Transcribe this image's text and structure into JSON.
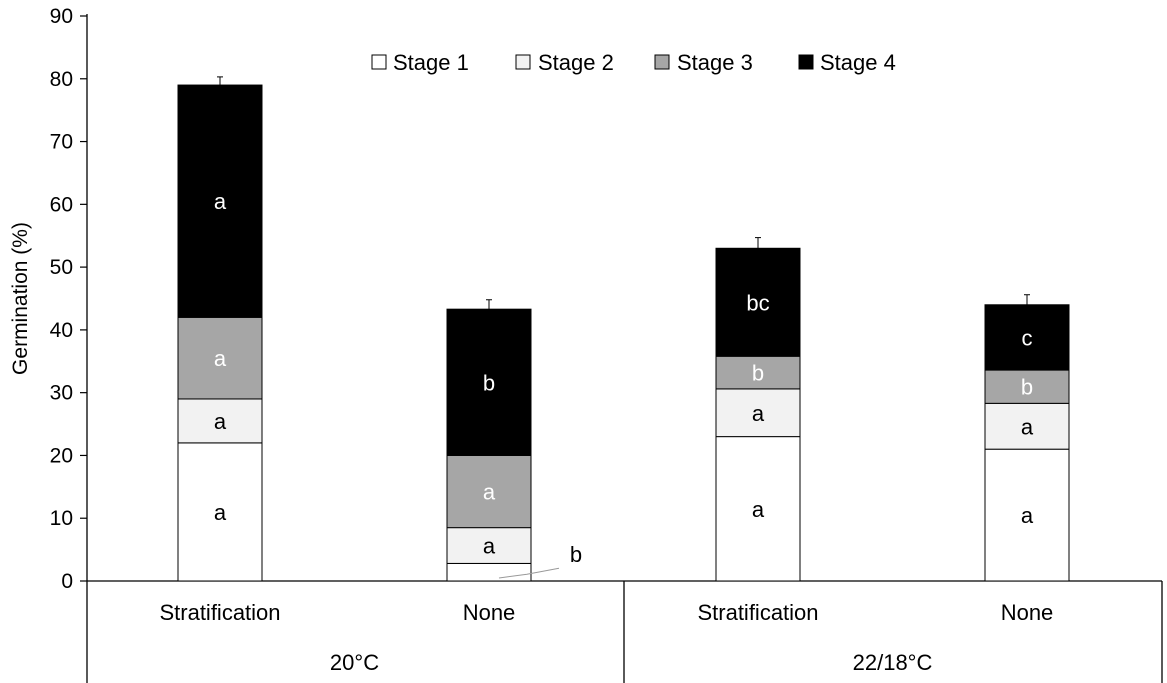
{
  "chart_data": {
    "type": "bar",
    "stacked": true,
    "ylabel": "Germination (%)",
    "ylim": [
      0,
      90
    ],
    "yticks": [
      "0",
      "10",
      "20",
      "30",
      "40",
      "50",
      "60",
      "70",
      "80",
      "90"
    ],
    "grid": false,
    "legend_position": "top-center",
    "categories": [
      "Stratification",
      "None",
      "Stratification",
      "None"
    ],
    "groups": [
      {
        "label": "20°C",
        "categories": [
          0,
          1
        ]
      },
      {
        "label": "22/18°C",
        "categories": [
          2,
          3
        ]
      }
    ],
    "series": [
      {
        "name": "Stage 1",
        "color": "#ffffff",
        "values": [
          22,
          2.8,
          23,
          21
        ],
        "letters": [
          "a",
          "b",
          "a",
          "a"
        ],
        "letter_color": "#000000"
      },
      {
        "name": "Stage 2",
        "color": "#f2f2f2",
        "values": [
          7,
          5.7,
          7.6,
          7.3
        ],
        "letters": [
          "a",
          "a",
          "a",
          "a"
        ],
        "letter_color": "#000000"
      },
      {
        "name": "Stage 3",
        "color": "#a6a6a6",
        "values": [
          13,
          11.5,
          5.2,
          5.3
        ],
        "letters": [
          "a",
          "a",
          "b",
          "b"
        ],
        "letter_color": "#ffffff"
      },
      {
        "name": "Stage 4",
        "color": "#000000",
        "values": [
          37,
          23.3,
          17.2,
          10.4
        ],
        "letters": [
          "a",
          "b",
          "bc",
          "c"
        ],
        "letter_color": "#ffffff"
      }
    ],
    "error_bars": [
      1.3,
      1.5,
      1.7,
      1.6
    ]
  }
}
